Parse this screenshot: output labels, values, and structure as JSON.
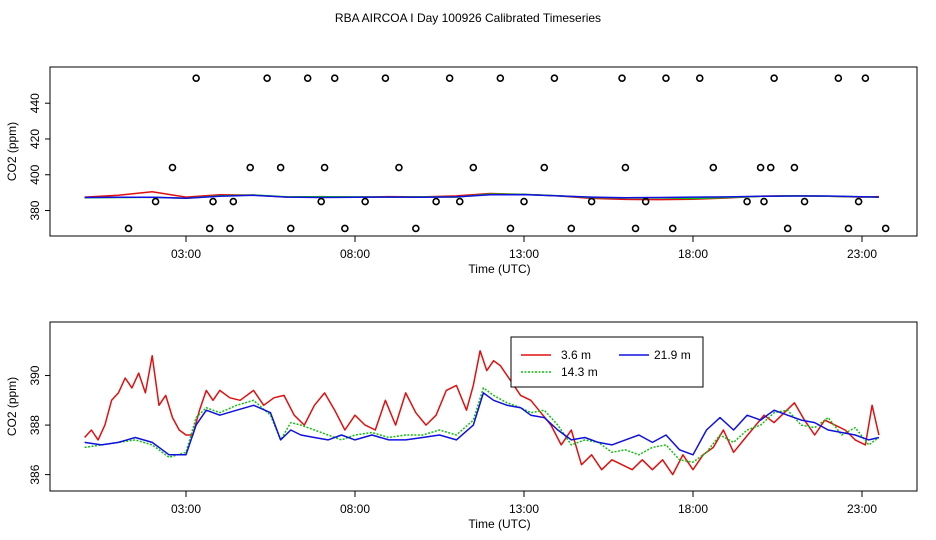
{
  "title": "RBA AIRCOA I  Day 100926  Calibrated Timeseries",
  "colors": {
    "red": "#e01010",
    "green": "#10c010",
    "blue": "#1010e0",
    "black": "#000000"
  },
  "chart_data": [
    {
      "type": "scatter+line",
      "xlabel": "Time (UTC)",
      "ylabel": "CO2 (ppm)",
      "xlim": [
        0,
        24
      ],
      "ylim": [
        368,
        458
      ],
      "xticks": [
        {
          "v": 3,
          "label": "03:00"
        },
        {
          "v": 8,
          "label": "08:00"
        },
        {
          "v": 13,
          "label": "13:00"
        },
        {
          "v": 18,
          "label": "18:00"
        },
        {
          "v": 23,
          "label": "23:00"
        }
      ],
      "yticks": [
        {
          "v": 380,
          "label": "380"
        },
        {
          "v": 400,
          "label": "400"
        },
        {
          "v": 420,
          "label": "420"
        },
        {
          "v": 440,
          "label": "440"
        }
      ],
      "calibration_points": {
        "x": [
          1.3,
          2.1,
          2.6,
          3.3,
          3.7,
          3.8,
          4.3,
          4.4,
          4.9,
          5.4,
          5.8,
          6.1,
          6.6,
          7.0,
          7.1,
          7.4,
          7.7,
          8.3,
          8.9,
          9.3,
          9.8,
          10.4,
          10.8,
          11.1,
          11.5,
          12.3,
          12.6,
          13.0,
          13.6,
          13.9,
          14.4,
          15.0,
          15.9,
          16.0,
          16.3,
          16.6,
          17.2,
          17.4,
          18.2,
          18.6,
          19.6,
          20.0,
          20.1,
          20.3,
          20.4,
          20.8,
          21.0,
          21.3,
          22.3,
          22.6,
          22.9,
          23.1,
          23.7
        ],
        "y": [
          370,
          385,
          404,
          454,
          370,
          385,
          370,
          385,
          404,
          454,
          404,
          370,
          454,
          385,
          404,
          454,
          370,
          385,
          454,
          404,
          370,
          385,
          454,
          385,
          404,
          454,
          370,
          385,
          404,
          454,
          370,
          385,
          454,
          404,
          370,
          385,
          454,
          370,
          454,
          404,
          385,
          404,
          385,
          404,
          454,
          370,
          404,
          385,
          454,
          370,
          385,
          454,
          370
        ]
      },
      "series": [
        {
          "name": "3.6 m",
          "color": "red",
          "x": [
            0,
            1,
            1.5,
            2,
            3,
            4,
            5,
            6,
            7,
            8,
            9,
            10,
            11,
            12,
            13,
            14,
            15,
            16,
            17,
            18,
            19,
            20,
            21,
            22,
            23,
            23.5
          ],
          "y": [
            387.5,
            388.5,
            389.5,
            390.5,
            387.5,
            388.8,
            388.6,
            387.5,
            387.8,
            387.5,
            387.8,
            387.6,
            388.2,
            389.5,
            389,
            388.2,
            386.8,
            386.2,
            386.1,
            386.3,
            387.0,
            388.0,
            388.3,
            388.0,
            387.5,
            387.8
          ]
        },
        {
          "name": "14.3 m",
          "color": "green",
          "x": [
            0,
            1,
            2,
            3,
            4,
            5,
            6,
            7,
            8,
            9,
            10,
            11,
            12,
            13,
            14,
            15,
            16,
            17,
            18,
            19,
            20,
            21,
            22,
            23,
            23.5
          ],
          "y": [
            387.2,
            387.3,
            387.4,
            386.9,
            388.2,
            388.7,
            387.6,
            387.7,
            387.6,
            387.5,
            387.6,
            387.5,
            389.2,
            389.0,
            388.3,
            387.3,
            387.0,
            387.1,
            386.7,
            387.3,
            387.9,
            388.3,
            388.0,
            387.6,
            387.4
          ]
        },
        {
          "name": "21.9 m",
          "color": "blue",
          "x": [
            0,
            1,
            2,
            3,
            4,
            5,
            6,
            7,
            8,
            9,
            10,
            11,
            12,
            13,
            14,
            15,
            16,
            17,
            18,
            19,
            20,
            21,
            22,
            23,
            23.5
          ],
          "y": [
            387.3,
            387.4,
            387.4,
            386.9,
            388.0,
            388.5,
            387.5,
            387.3,
            387.4,
            387.5,
            387.4,
            387.6,
            388.8,
            388.9,
            388.2,
            387.5,
            387.2,
            387.3,
            387.5,
            387.6,
            388.0,
            388.1,
            388.1,
            387.7,
            387.5
          ]
        }
      ]
    },
    {
      "type": "line",
      "xlabel": "Time (UTC)",
      "ylabel": "CO2 (ppm)",
      "xlim": [
        0,
        24
      ],
      "ylim": [
        385.5,
        392.0
      ],
      "xticks": [
        {
          "v": 3,
          "label": "03:00"
        },
        {
          "v": 8,
          "label": "08:00"
        },
        {
          "v": 13,
          "label": "13:00"
        },
        {
          "v": 18,
          "label": "18:00"
        },
        {
          "v": 23,
          "label": "23:00"
        }
      ],
      "yticks": [
        {
          "v": 386,
          "label": "386"
        },
        {
          "v": 388,
          "label": "388"
        },
        {
          "v": 390,
          "label": "390"
        }
      ],
      "legend": {
        "position": "top-center",
        "entries": [
          {
            "label": "3.6 m",
            "color": "red",
            "style": "solid"
          },
          {
            "label": "21.9 m",
            "color": "blue",
            "style": "solid"
          },
          {
            "label": "14.3 m",
            "color": "green",
            "style": "dotted"
          }
        ]
      },
      "series": [
        {
          "name": "3.6 m",
          "color": "red",
          "x": [
            0,
            0.2,
            0.4,
            0.6,
            0.8,
            1.0,
            1.2,
            1.4,
            1.6,
            1.8,
            2.0,
            2.2,
            2.4,
            2.6,
            2.8,
            3.0,
            3.2,
            3.4,
            3.6,
            3.8,
            4.0,
            4.3,
            4.6,
            5.0,
            5.3,
            5.6,
            5.9,
            6.2,
            6.5,
            6.8,
            7.1,
            7.4,
            7.7,
            8.0,
            8.3,
            8.6,
            8.9,
            9.2,
            9.5,
            9.8,
            10.1,
            10.4,
            10.7,
            11.0,
            11.3,
            11.5,
            11.7,
            11.9,
            12.1,
            12.3,
            12.6,
            12.9,
            13.2,
            13.5,
            13.8,
            14.1,
            14.4,
            14.7,
            15.0,
            15.3,
            15.6,
            15.9,
            16.2,
            16.5,
            16.8,
            17.1,
            17.4,
            17.7,
            18.0,
            18.3,
            18.6,
            18.9,
            19.2,
            19.5,
            19.8,
            20.1,
            20.4,
            20.7,
            21.0,
            21.3,
            21.6,
            21.9,
            22.2,
            22.5,
            22.8,
            23.1,
            23.3,
            23.5
          ],
          "y": [
            387.5,
            387.8,
            387.4,
            388.0,
            389.0,
            389.3,
            389.9,
            389.5,
            390.1,
            389.3,
            390.8,
            388.8,
            389.2,
            388.3,
            387.8,
            387.6,
            387.6,
            388.6,
            389.4,
            389.0,
            389.4,
            389.1,
            389.0,
            389.4,
            388.8,
            389.1,
            389.2,
            388.4,
            388.0,
            388.8,
            389.3,
            388.6,
            387.8,
            388.4,
            388.0,
            387.8,
            389.0,
            388.0,
            389.3,
            388.5,
            388.0,
            388.4,
            389.4,
            389.6,
            388.6,
            389.6,
            391.0,
            390.2,
            390.6,
            390.4,
            389.8,
            389.2,
            389.0,
            388.5,
            388.0,
            387.2,
            387.8,
            386.4,
            386.8,
            386.2,
            386.6,
            386.4,
            386.2,
            386.6,
            386.2,
            386.6,
            386.0,
            386.8,
            386.2,
            386.8,
            387.1,
            387.8,
            386.9,
            387.4,
            387.9,
            388.4,
            388.1,
            388.5,
            388.9,
            388.2,
            387.6,
            388.2,
            388.0,
            387.8,
            387.4,
            387.2,
            388.8,
            387.6
          ]
        },
        {
          "name": "14.3 m",
          "color": "green",
          "x": [
            0,
            0.5,
            1.0,
            1.5,
            2.0,
            2.5,
            3.0,
            3.3,
            3.6,
            4.0,
            4.5,
            5.0,
            5.5,
            5.8,
            6.1,
            6.4,
            6.8,
            7.2,
            7.6,
            8.0,
            8.5,
            9.0,
            9.5,
            10.0,
            10.5,
            11.0,
            11.5,
            11.8,
            12.1,
            12.5,
            12.9,
            13.2,
            13.6,
            14.0,
            14.4,
            14.8,
            15.2,
            15.6,
            16.0,
            16.4,
            16.8,
            17.2,
            17.6,
            18.0,
            18.4,
            18.8,
            19.2,
            19.6,
            20.0,
            20.4,
            20.8,
            21.2,
            21.6,
            22.0,
            22.4,
            22.8,
            23.2,
            23.5
          ],
          "y": [
            387.1,
            387.2,
            387.3,
            387.4,
            387.2,
            386.7,
            386.9,
            388.3,
            388.7,
            388.5,
            388.8,
            389.0,
            388.4,
            387.4,
            388.1,
            388.0,
            387.8,
            387.6,
            387.4,
            387.6,
            387.7,
            387.5,
            387.6,
            387.6,
            387.8,
            387.6,
            388.2,
            389.5,
            389.2,
            388.9,
            388.7,
            388.5,
            388.6,
            388.0,
            387.2,
            387.4,
            387.3,
            386.9,
            387.0,
            386.8,
            387.1,
            387.2,
            386.6,
            386.5,
            386.9,
            387.6,
            387.3,
            387.8,
            388.0,
            388.5,
            388.6,
            388.0,
            387.9,
            388.3,
            387.6,
            387.9,
            387.2,
            387.5
          ]
        },
        {
          "name": "21.9 m",
          "color": "blue",
          "x": [
            0,
            0.5,
            1.0,
            1.5,
            2.0,
            2.5,
            3.0,
            3.3,
            3.6,
            4.0,
            4.5,
            5.0,
            5.5,
            5.8,
            6.1,
            6.4,
            6.8,
            7.2,
            7.6,
            8.0,
            8.5,
            9.0,
            9.5,
            10.0,
            10.5,
            11.0,
            11.5,
            11.8,
            12.1,
            12.5,
            12.9,
            13.2,
            13.6,
            14.0,
            14.4,
            14.8,
            15.2,
            15.6,
            16.0,
            16.4,
            16.8,
            17.2,
            17.6,
            18.0,
            18.4,
            18.8,
            19.2,
            19.6,
            20.0,
            20.4,
            20.8,
            21.2,
            21.6,
            22.0,
            22.4,
            22.8,
            23.2,
            23.5
          ],
          "y": [
            387.3,
            387.2,
            387.3,
            387.5,
            387.3,
            386.8,
            386.8,
            388.0,
            388.6,
            388.4,
            388.6,
            388.8,
            388.5,
            387.4,
            387.8,
            387.6,
            387.5,
            387.4,
            387.6,
            387.4,
            387.6,
            387.4,
            387.4,
            387.5,
            387.6,
            387.4,
            388.0,
            389.3,
            389.0,
            388.8,
            388.7,
            388.4,
            388.3,
            387.8,
            387.4,
            387.5,
            387.3,
            387.2,
            387.4,
            387.6,
            387.3,
            387.6,
            387.0,
            386.8,
            387.8,
            388.3,
            387.8,
            388.4,
            388.2,
            388.6,
            388.4,
            388.2,
            388.1,
            387.8,
            387.7,
            387.6,
            387.4,
            387.5
          ]
        }
      ]
    }
  ]
}
